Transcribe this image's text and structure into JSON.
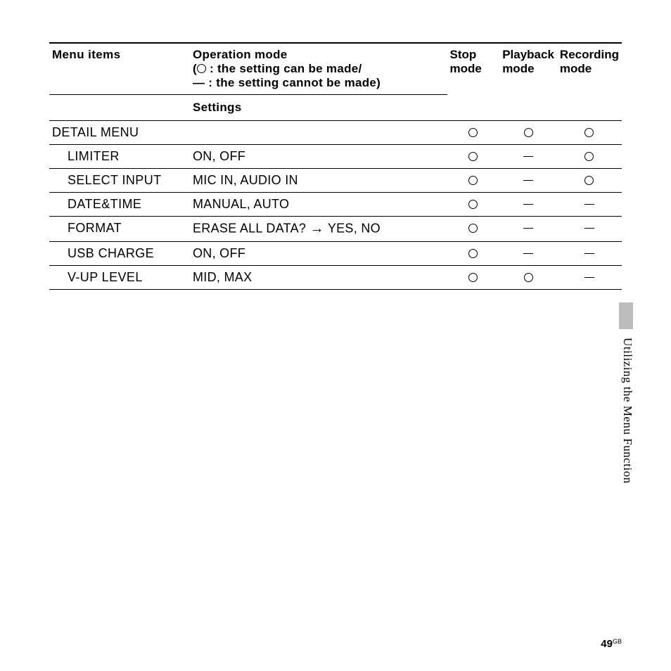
{
  "header": {
    "menu_items": "Menu items",
    "operation_mode": "Operation mode",
    "legend_can": " : the setting can be made/",
    "legend_cannot": "— : the setting cannot be made)",
    "stop": "Stop mode",
    "playback": "Playback mode",
    "recording": "Recording mode",
    "settings": "Settings"
  },
  "rows": {
    "detail": {
      "name": "DETAIL MENU",
      "settings": "",
      "stop": "O",
      "playback": "O",
      "recording": "O"
    },
    "limiter": {
      "name": "LIMITER",
      "settings": "ON, OFF",
      "stop": "O",
      "playback": "-",
      "recording": "O"
    },
    "select_input": {
      "name": "SELECT INPUT",
      "settings": "MIC IN, AUDIO IN",
      "stop": "O",
      "playback": "-",
      "recording": "O"
    },
    "datetime": {
      "name": "DATE&TIME",
      "settings": "MANUAL, AUTO",
      "stop": "O",
      "playback": "-",
      "recording": "-"
    },
    "format": {
      "name": "FORMAT",
      "settings_pre": "ERASE ALL DATA? ",
      "settings_post": " YES, NO",
      "stop": "O",
      "playback": "-",
      "recording": "-"
    },
    "usb": {
      "name": "USB CHARGE",
      "settings": "ON, OFF",
      "stop": "O",
      "playback": "-",
      "recording": "-"
    },
    "vup": {
      "name": "V-UP LEVEL",
      "settings": "MID, MAX",
      "stop": "O",
      "playback": "O",
      "recording": "-"
    }
  },
  "side_text": "Utilizing the Menu Function",
  "page_number": "49",
  "page_region": "GB",
  "colors": {
    "background": "#ffffff",
    "text": "#000000",
    "tab": "#bcbcbc",
    "border": "#000000"
  }
}
